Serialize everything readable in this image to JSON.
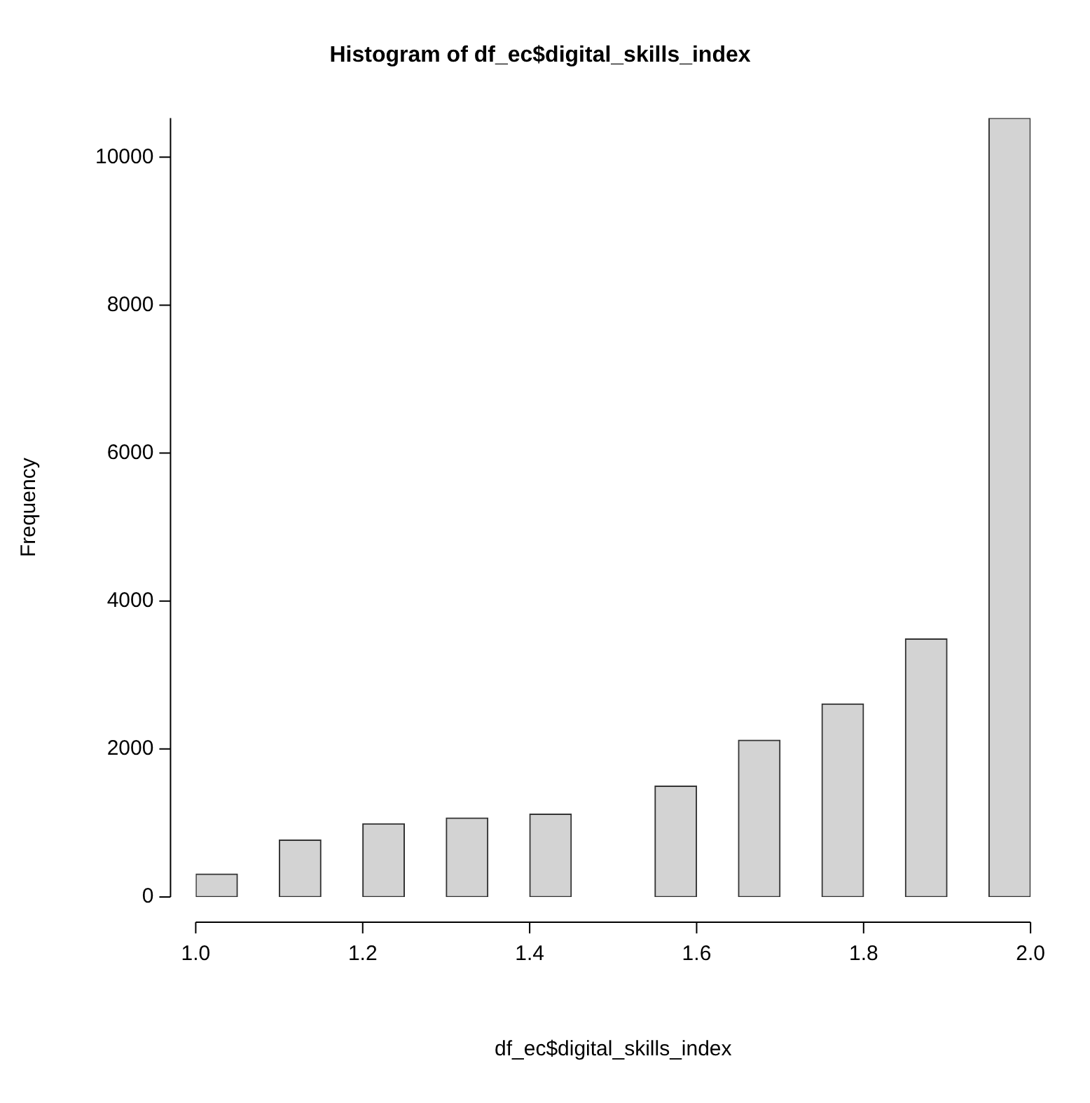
{
  "chart_data": {
    "type": "histogram",
    "title": "Histogram of df_ec$digital_skills_index",
    "xlabel": "df_ec$digital_skills_index",
    "ylabel": "Frequency",
    "bins": [
      1.0,
      1.05,
      1.1,
      1.15,
      1.2,
      1.25,
      1.3,
      1.35,
      1.4,
      1.45,
      1.5,
      1.55,
      1.6,
      1.65,
      1.7,
      1.75,
      1.8,
      1.85,
      1.9,
      1.95,
      2.0
    ],
    "values": [
      310,
      0,
      770,
      0,
      990,
      0,
      1070,
      0,
      1120,
      0,
      0,
      1500,
      0,
      2120,
      0,
      2610,
      0,
      3490,
      0,
      10530
    ],
    "color": "#d3d3d3",
    "xlim": [
      1.0,
      2.0
    ],
    "ylim": [
      0,
      10530
    ],
    "xticks": [
      {
        "value": 1.0,
        "label": "1.0"
      },
      {
        "value": 1.2,
        "label": "1.2"
      },
      {
        "value": 1.4,
        "label": "1.4"
      },
      {
        "value": 1.6,
        "label": "1.6"
      },
      {
        "value": 1.8,
        "label": "1.8"
      },
      {
        "value": 2.0,
        "label": "2.0"
      }
    ],
    "yticks": [
      0,
      2000,
      4000,
      6000,
      8000,
      10000
    ],
    "grid": false,
    "legend": false
  }
}
